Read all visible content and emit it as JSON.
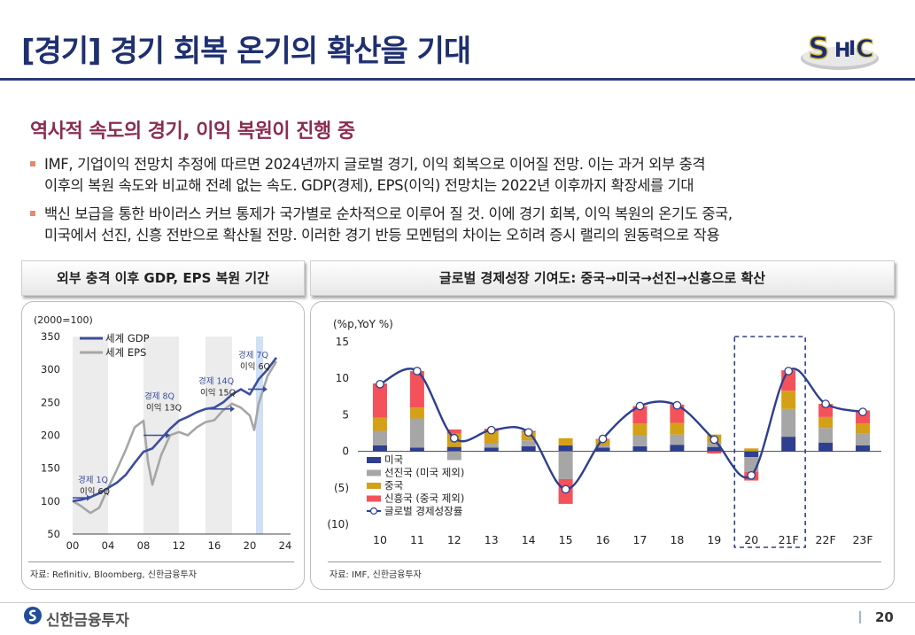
{
  "header": {
    "title": "[경기] 경기 회복 온기의 확산을 기대",
    "logo_text": "SHIC"
  },
  "section": {
    "subtitle": "역사적 속도의 경기, 이익 복원이 진행 중",
    "bullets": [
      {
        "line1": "IMF, 기업이익 전망치 추정에 따르면 2024년까지 글로벌 경기, 이익 회복으로 이어질 전망. 이는 과거 외부 충격",
        "line2": "이후의 복원 속도와 비교해 전례 없는 속도. GDP(경제), EPS(이익) 전망치는 2022년 이후까지 확장세를 기대"
      },
      {
        "line1": "백신 보급을 통한 바이러스 커브 통제가 국가별로 순차적으로 이루어 질 것. 이에 경기 회복, 이익 복원의 온기도 중국,",
        "line2": "미국에서 선진, 신흥 전반으로 확산될 전망. 이러한 경기 반등 모멘텀의 차이는 오히려 증시 랠리의 원동력으로 작용"
      }
    ]
  },
  "left_panel": {
    "heading": "외부 충격 이후 GDP, EPS 복원 기간",
    "source": "자료: Refinitiv, Bloomberg, 신한금융투자"
  },
  "right_panel": {
    "heading": "글로벌 경제성장 기여도: 중국→미국→선진→신흥으로 확산",
    "source": "자료: IMF, 신한금융투자"
  },
  "footer": {
    "brand": "신한금융투자",
    "page": "20"
  },
  "colors": {
    "navy": "#2e3f8e",
    "gray": "#a6a6a6",
    "gold": "#d4a017",
    "red": "#f4525a",
    "title": "#1f3070",
    "subtitle": "#8a2d50"
  },
  "chart_data": [
    {
      "type": "line",
      "ylabel": "(2000=100)",
      "ylim": [
        50,
        350
      ],
      "yticks": [
        50,
        100,
        150,
        200,
        250,
        300,
        350
      ],
      "xlim": [
        0,
        24
      ],
      "xticks": [
        "00",
        "04",
        "08",
        "12",
        "16",
        "20",
        "24"
      ],
      "series": [
        {
          "name": "세계 GDP",
          "x": [
            0,
            1,
            2,
            3,
            4,
            5,
            6,
            7,
            8,
            9,
            10,
            11,
            12,
            13,
            14,
            15,
            16,
            17,
            18,
            19,
            20,
            21,
            22,
            23
          ],
          "y": [
            100,
            102,
            106,
            112,
            120,
            128,
            140,
            158,
            175,
            180,
            195,
            210,
            222,
            228,
            235,
            240,
            242,
            250,
            262,
            270,
            262,
            285,
            300,
            318
          ]
        },
        {
          "name": "세계 EPS",
          "x": [
            0,
            1,
            2,
            3,
            4,
            5,
            6,
            7,
            8,
            8.5,
            9,
            10,
            11,
            12,
            13,
            14,
            15,
            16,
            17,
            18,
            19,
            20,
            20.5,
            21,
            22,
            23
          ],
          "y": [
            100,
            92,
            82,
            90,
            120,
            148,
            178,
            212,
            222,
            160,
            125,
            170,
            200,
            205,
            200,
            212,
            220,
            223,
            238,
            248,
            242,
            230,
            208,
            248,
            290,
            312
          ]
        }
      ],
      "shaded_periods": [
        [
          0,
          4
        ],
        [
          8,
          12
        ],
        [
          15,
          18
        ],
        [
          20.7,
          21.5
        ]
      ],
      "annotations": [
        {
          "label1": "경제 1Q",
          "label2": "이익 6Q"
        },
        {
          "label1": "경제 8Q",
          "label2": "이익 13Q"
        },
        {
          "label1": "경제 14Q",
          "label2": "이익 15Q"
        },
        {
          "label1": "경제 7Q",
          "label2": "이익 6Q"
        }
      ]
    },
    {
      "type": "bar",
      "ylabel": "(%p,YoY %)",
      "ylim": [
        -10,
        15
      ],
      "yticks": [
        "15",
        "10",
        "5",
        "0",
        "(5)",
        "(10)"
      ],
      "categories": [
        "10",
        "11",
        "12",
        "13",
        "14",
        "15",
        "16",
        "17",
        "18",
        "19",
        "20",
        "21F",
        "22F",
        "23F"
      ],
      "series": [
        {
          "name": "미국",
          "values": [
            0.8,
            0.5,
            0.6,
            0.5,
            0.7,
            0.8,
            0.5,
            0.7,
            0.9,
            0.6,
            -0.8,
            2.0,
            1.2,
            0.8
          ]
        },
        {
          "name": "선진국 (미국 제외)",
          "values": [
            2.0,
            4.0,
            -1.2,
            0.6,
            0.8,
            -3.8,
            0.3,
            1.5,
            1.4,
            0.6,
            -2.0,
            3.8,
            2.0,
            1.6
          ]
        },
        {
          "name": "중국",
          "values": [
            1.8,
            1.5,
            1.8,
            1.6,
            1.1,
            1.0,
            0.9,
            1.6,
            1.6,
            1.1,
            0.4,
            2.5,
            1.5,
            1.4
          ]
        },
        {
          "name": "신흥국 (중국 제외)",
          "values": [
            4.7,
            5.0,
            0.6,
            0.4,
            0.2,
            -3.4,
            0.0,
            2.4,
            2.5,
            -0.3,
            -1.2,
            2.8,
            1.8,
            1.8
          ]
        }
      ],
      "line": {
        "name": "글로벌 경제성장률",
        "values": [
          9.2,
          11.0,
          1.8,
          2.9,
          2.6,
          -5.2,
          1.7,
          6.2,
          6.3,
          1.6,
          -3.3,
          11.0,
          6.5,
          5.4
        ]
      },
      "highlight_categories": [
        "20",
        "21F"
      ]
    }
  ]
}
